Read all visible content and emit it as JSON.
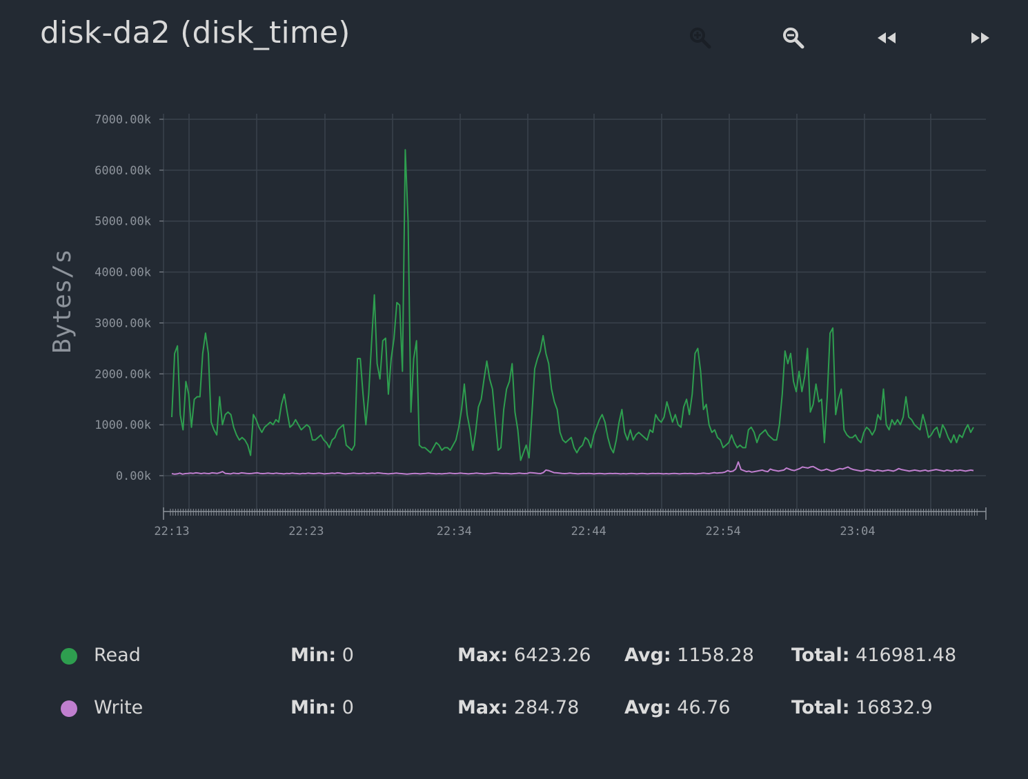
{
  "title": "disk-da2 (disk_time)",
  "toolbar": {
    "buttons": [
      {
        "name": "zoom-in-button",
        "icon": "zoom-in-icon",
        "enabled": false
      },
      {
        "name": "zoom-out-button",
        "icon": "zoom-out-icon",
        "enabled": true
      },
      {
        "name": "rewind-button",
        "icon": "rewind-icon",
        "enabled": true
      },
      {
        "name": "fast-forward-button",
        "icon": "fast-forward-icon",
        "enabled": true
      }
    ]
  },
  "colors": {
    "background": "#232a33",
    "read": "#2e9e4f",
    "write": "#c07fcf",
    "grid": "#3a424c",
    "axis": "#8d939b"
  },
  "chart_data": {
    "type": "line",
    "ylabel": "Bytes/s",
    "xlabel": "",
    "ylim": [
      -700,
      7000
    ],
    "yticks": [
      0,
      1000,
      2000,
      3000,
      4000,
      5000,
      6000,
      7000
    ],
    "ytick_labels": [
      "0.00k",
      "1000.00k",
      "2000.00k",
      "3000.00k",
      "4000.00k",
      "5000.00k",
      "6000.00k",
      "7000.00k"
    ],
    "xlim": [
      "22:12",
      "23:12"
    ],
    "xticks": [
      "22:13",
      "22:23",
      "22:34",
      "22:44",
      "22:54",
      "23:04"
    ],
    "grid": true,
    "series": [
      {
        "name": "Read",
        "values": [
          1150,
          2400,
          2550,
          1200,
          900,
          1850,
          1600,
          950,
          1500,
          1550,
          1550,
          2400,
          2800,
          2400,
          1050,
          900,
          800,
          1550,
          1000,
          1200,
          1250,
          1200,
          950,
          800,
          700,
          750,
          700,
          600,
          400,
          1200,
          1100,
          950,
          850,
          950,
          1000,
          1050,
          1000,
          1100,
          1050,
          1400,
          1600,
          1250,
          950,
          1000,
          1100,
          1000,
          900,
          950,
          1000,
          950,
          700,
          700,
          750,
          800,
          700,
          650,
          550,
          700,
          750,
          900,
          950,
          1000,
          600,
          550,
          500,
          600,
          2300,
          2300,
          1600,
          1000,
          1600,
          2600,
          3550,
          2200,
          1900,
          2650,
          2700,
          1600,
          2300,
          2700,
          3400,
          3350,
          2050,
          6400,
          5000,
          1250,
          2300,
          2650,
          600,
          550,
          550,
          500,
          450,
          550,
          650,
          600,
          500,
          550,
          550,
          500,
          600,
          700,
          950,
          1300,
          1800,
          1200,
          900,
          500,
          850,
          1350,
          1500,
          1900,
          2250,
          1900,
          1700,
          1100,
          500,
          550,
          1300,
          1700,
          1850,
          2200,
          1250,
          900,
          300,
          450,
          600,
          350,
          1200,
          2100,
          2300,
          2450,
          2750,
          2400,
          2200,
          1700,
          1450,
          1300,
          850,
          700,
          650,
          700,
          750,
          550,
          450,
          550,
          600,
          750,
          700,
          550,
          800,
          950,
          1100,
          1200,
          1050,
          750,
          550,
          450,
          700,
          1050,
          1300,
          850,
          700,
          900,
          700,
          800,
          850,
          800,
          750,
          700,
          900,
          850,
          1200,
          1100,
          1050,
          1150,
          1450,
          1250,
          1050,
          1200,
          1000,
          950,
          1350,
          1500,
          1200,
          1600,
          2400,
          2500,
          2050,
          1300,
          1400,
          1000,
          850,
          900,
          750,
          700,
          550,
          600,
          650,
          800,
          650,
          550,
          600,
          550,
          550,
          900,
          950,
          850,
          650,
          800,
          850,
          900,
          800,
          750,
          700,
          700,
          1000,
          1600,
          2450,
          2200,
          2400,
          1850,
          1650,
          2050,
          1650,
          1950,
          2500,
          1250,
          1400,
          1800,
          1450,
          1500,
          650,
          1550,
          2800,
          2900,
          1200,
          1500,
          1700,
          900,
          800,
          750,
          750,
          800,
          700,
          650,
          850,
          950,
          900,
          800,
          900,
          1200,
          1100,
          1700,
          1000,
          900,
          1100,
          1000,
          1100,
          1000,
          1150,
          1550,
          1150,
          1100,
          1000,
          950,
          900,
          1200,
          1000,
          750,
          800,
          900,
          950,
          750,
          1000,
          900,
          750,
          650,
          800,
          650,
          800,
          750,
          900,
          1000,
          850,
          950
        ]
      },
      {
        "name": "Write",
        "values": [
          40,
          30,
          35,
          50,
          30,
          40,
          45,
          50,
          45,
          55,
          50,
          40,
          50,
          45,
          40,
          55,
          50,
          45,
          60,
          80,
          45,
          40,
          35,
          50,
          45,
          40,
          55,
          50,
          45,
          40,
          45,
          50,
          55,
          45,
          40,
          45,
          50,
          45,
          40,
          50,
          45,
          40,
          35,
          45,
          40,
          50,
          45,
          40,
          35,
          45,
          40,
          50,
          45,
          40,
          45,
          50,
          45,
          35,
          40,
          45,
          50,
          45,
          55,
          50,
          40,
          35,
          40,
          45,
          50,
          45,
          40,
          45,
          50,
          40,
          45,
          50,
          45,
          55,
          50,
          45,
          40,
          35,
          40,
          45,
          50,
          45,
          40,
          35,
          30,
          35,
          40,
          45,
          40,
          35,
          40,
          45,
          50,
          45,
          40,
          35,
          40,
          35,
          40,
          45,
          50,
          45,
          40,
          45,
          50,
          45,
          40,
          35,
          40,
          45,
          50,
          45,
          40,
          35,
          40,
          45,
          50,
          55,
          50,
          45,
          40,
          45,
          40,
          35,
          40,
          45,
          50,
          45,
          40,
          45,
          60,
          55,
          50,
          45,
          40,
          60,
          110,
          100,
          80,
          60,
          55,
          50,
          45,
          40,
          45,
          50,
          45,
          40,
          35,
          40,
          45,
          40,
          45,
          40,
          35,
          40,
          45,
          40,
          35,
          40,
          45,
          40,
          45,
          40,
          35,
          40,
          35,
          40,
          45,
          40,
          35,
          40,
          45,
          40,
          35,
          40,
          45,
          40,
          45,
          40,
          35,
          40,
          35,
          40,
          45,
          40,
          35,
          40,
          45,
          40,
          45,
          40,
          35,
          40,
          45,
          50,
          45,
          40,
          50,
          60,
          50,
          55,
          60,
          70,
          100,
          80,
          90,
          130,
          270,
          120,
          100,
          80,
          90,
          70,
          80,
          90,
          100,
          110,
          90,
          80,
          130,
          110,
          100,
          90,
          100,
          110,
          150,
          130,
          110,
          100,
          120,
          140,
          170,
          160,
          150,
          170,
          180,
          150,
          120,
          100,
          110,
          130,
          110,
          90,
          100,
          120,
          140,
          130,
          150,
          170,
          140,
          120,
          110,
          100,
          90,
          100,
          120,
          110,
          100,
          90,
          110,
          100,
          90,
          100,
          110,
          100,
          90,
          110,
          140,
          120,
          110,
          100,
          90,
          100,
          110,
          100,
          90,
          100,
          110,
          90,
          100,
          110,
          120,
          110,
          100,
          90,
          110,
          100,
          90,
          110,
          100,
          110,
          100,
          90,
          100,
          110,
          100
        ]
      }
    ]
  },
  "legend": [
    {
      "name": "Read",
      "color": "#2e9e4f",
      "min_label": "Min:",
      "min": "0",
      "max_label": "Max:",
      "max": "6423.26",
      "avg_label": "Avg:",
      "avg": "1158.28",
      "total_label": "Total:",
      "total": "416981.48"
    },
    {
      "name": "Write",
      "color": "#c07fcf",
      "min_label": "Min:",
      "min": "0",
      "max_label": "Max:",
      "max": "284.78",
      "avg_label": "Avg:",
      "avg": "46.76",
      "total_label": "Total:",
      "total": "16832.9"
    }
  ]
}
